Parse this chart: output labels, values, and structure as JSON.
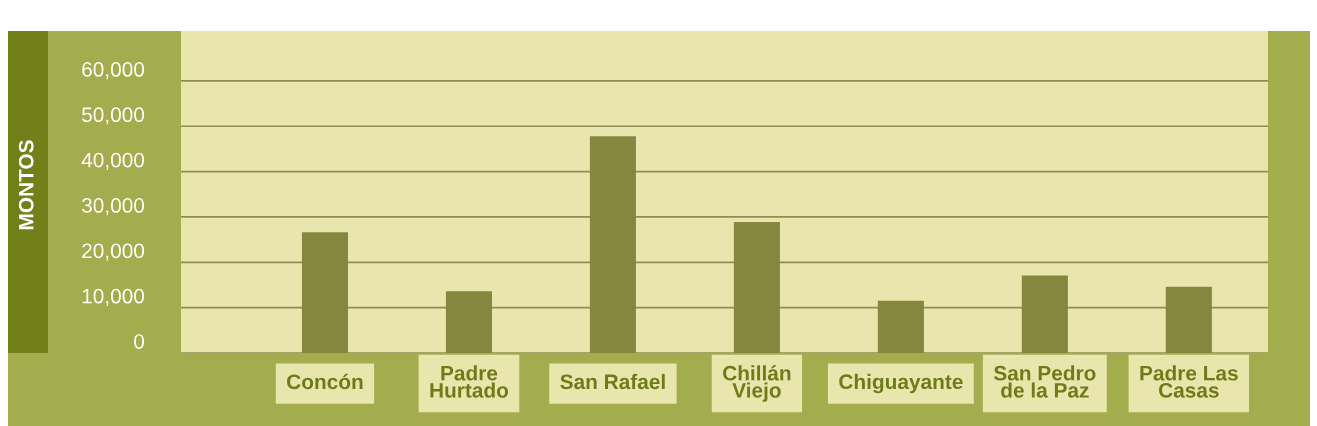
{
  "chart_data": {
    "type": "bar",
    "ylabel": "MONTOS",
    "categories": [
      "Concón",
      "Padre\nHurtado",
      "San Rafael",
      "Chillán\nViejo",
      "Chiguayante",
      "San Pedro\nde la Paz",
      "Padre Las\nCasas"
    ],
    "values": [
      26600,
      13600,
      47800,
      28900,
      11500,
      17100,
      14600
    ],
    "color": "#84873d",
    "ylim": [
      0,
      71000
    ],
    "yticks": [
      {
        "value": 0,
        "label": "0"
      },
      {
        "value": 10000,
        "label": "10,000"
      },
      {
        "value": 20000,
        "label": "20,000"
      },
      {
        "value": 30000,
        "label": "30,000"
      },
      {
        "value": 40000,
        "label": "40,000"
      },
      {
        "value": 50000,
        "label": "50,000"
      },
      {
        "value": 60000,
        "label": "60,000"
      }
    ],
    "grid": "y"
  }
}
